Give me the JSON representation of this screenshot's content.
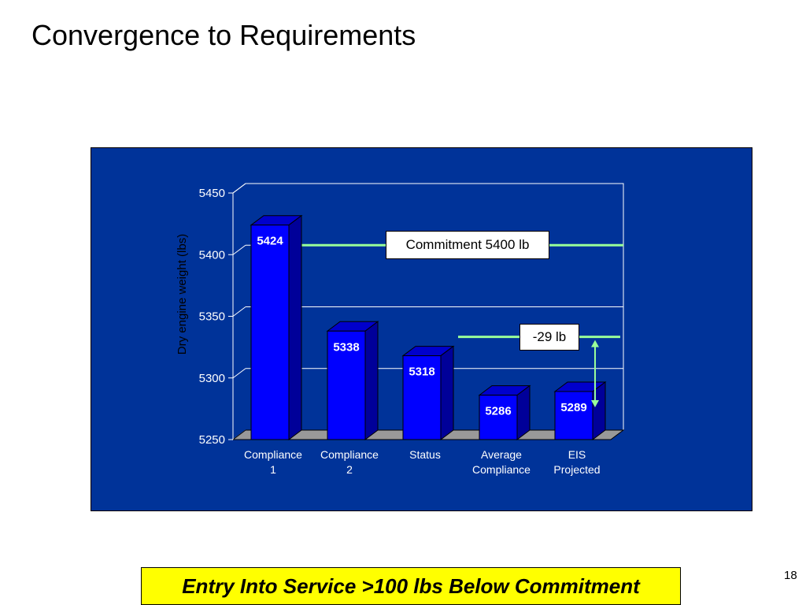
{
  "slide": {
    "title": "Convergence to Requirements",
    "banner": "Entry Into Service >100 lbs Below Commitment",
    "page_number": "18"
  },
  "colors": {
    "panel_bg": "#003399",
    "bar_front": "#0000ff",
    "bar_top": "#0000cc",
    "bar_side": "#000099",
    "floor": "#999999",
    "reference_line": "#99ff99",
    "banner_bg": "#ffff00"
  },
  "chart_data": {
    "type": "bar",
    "ylabel": "Dry engine weight (lbs)",
    "ylim": [
      5250,
      5450
    ],
    "yticks": [
      5250,
      5300,
      5350,
      5400,
      5450
    ],
    "categories": [
      [
        "Compliance",
        "1"
      ],
      [
        "Compliance",
        "2"
      ],
      [
        "Status"
      ],
      [
        "Average",
        "Compliance"
      ],
      [
        "EIS",
        "Projected"
      ]
    ],
    "values": [
      5424,
      5338,
      5318,
      5286,
      5289
    ],
    "data_labels": [
      "5424",
      "5338",
      "5318",
      "5286",
      "5289"
    ],
    "grid": "horizontal",
    "annotations": {
      "commitment": {
        "value": 5400,
        "label": "Commitment 5400 lb"
      },
      "delta": {
        "value": 5318,
        "label": "-29 lb"
      }
    }
  }
}
